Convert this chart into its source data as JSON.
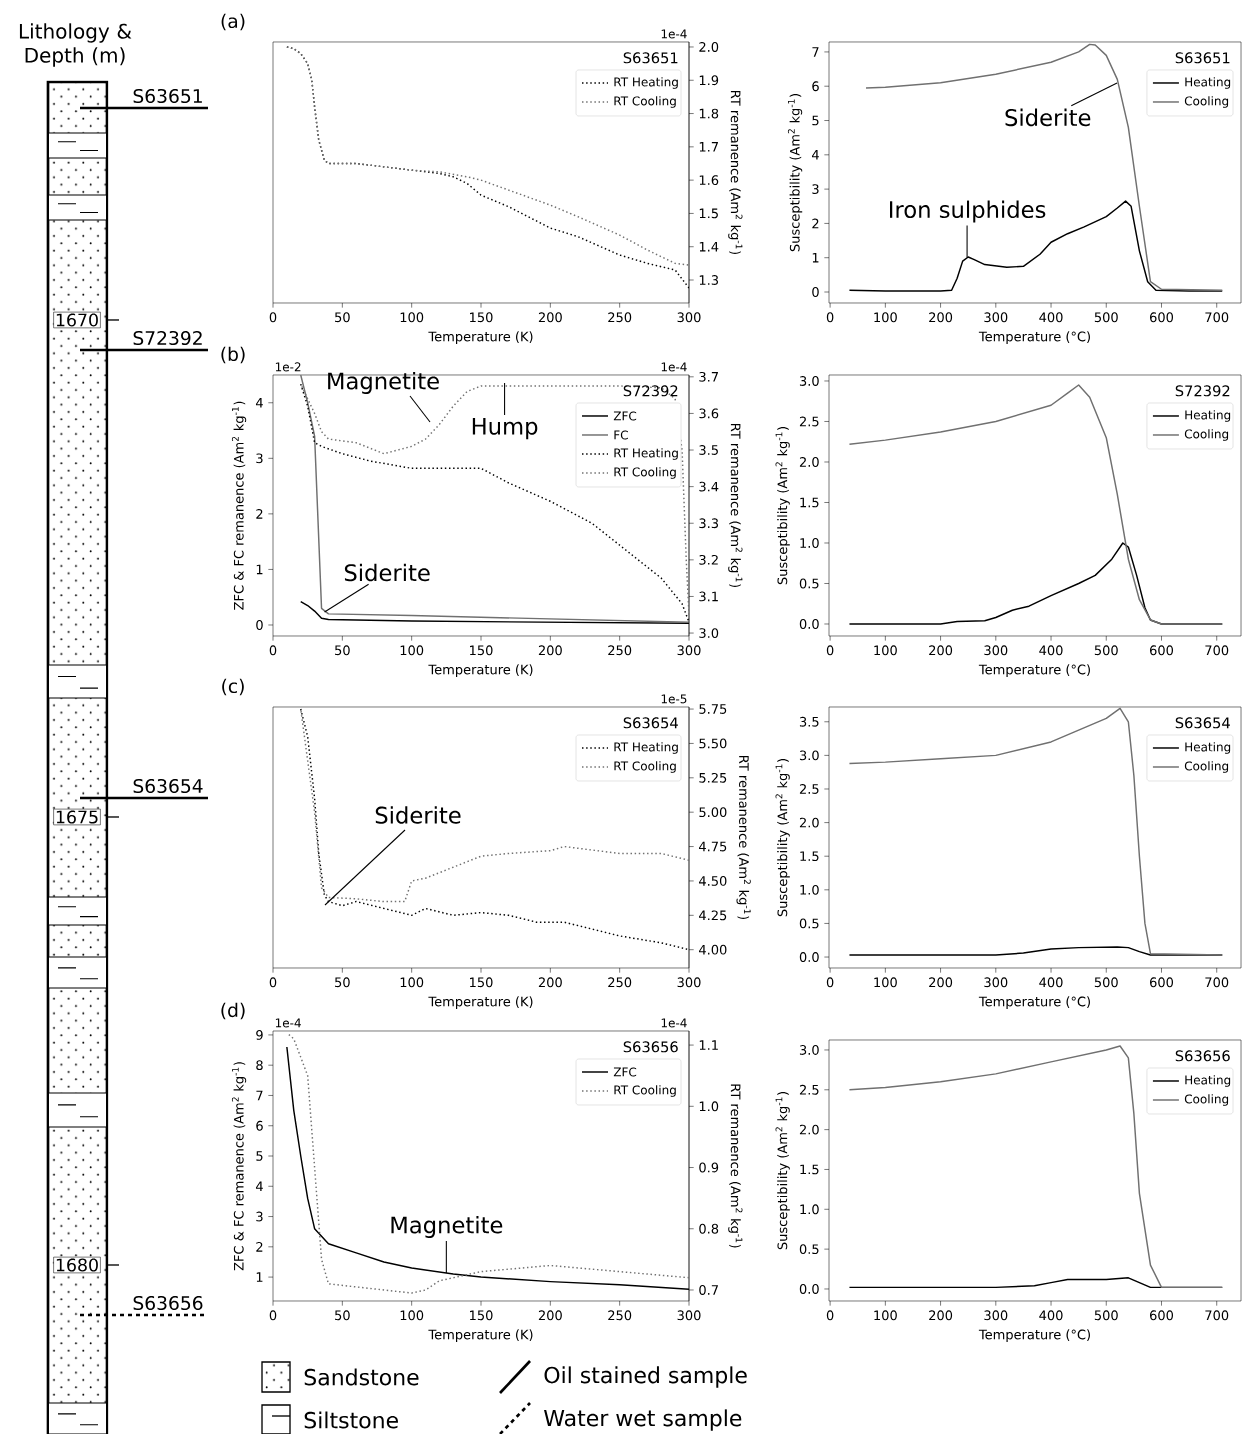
{
  "chart_data": [
    {
      "type": "other",
      "title": "Lithology & Depth (m)",
      "annotations": [
        "S63651",
        "S72392",
        "S63654",
        "S63656",
        "1670",
        "1675",
        "1680",
        "Sandstone",
        "Siltstone",
        "Oil stained sample",
        "Water wet sample"
      ]
    },
    {
      "type": "line",
      "title": "S63651",
      "xlabel": "Temperature (K)",
      "y2label": "RT remanence (Am$^{2}$ kg$^{-1}$)",
      "xlim": [
        0,
        300
      ],
      "xticks": [
        0,
        50,
        100,
        150,
        200,
        250,
        300
      ],
      "y2lim": [
        1.231,
        2.015
      ],
      "y2ticks": [
        1.3,
        1.4,
        1.5,
        1.6,
        1.7,
        1.8,
        1.9,
        {
          "value": 2,
          "label": "2.0"
        }
      ],
      "legend": "top right",
      "annotations": [
        "(a)",
        "1e-4"
      ],
      "series": [
        {
          "name": "RT Heating",
          "color": "#000000",
          "line_style": "dotted",
          "axis": "y2",
          "x": [
            10,
            15,
            20,
            25,
            28,
            30,
            33,
            37,
            40,
            60,
            80,
            100,
            120,
            130,
            140,
            150,
            170,
            200,
            220,
            250,
            270,
            280,
            290,
            300
          ],
          "values": [
            2.0,
            1.995,
            1.98,
            1.95,
            1.9,
            1.82,
            1.72,
            1.66,
            1.65,
            1.65,
            1.64,
            1.63,
            1.62,
            1.61,
            1.59,
            1.555,
            1.52,
            1.456,
            1.43,
            1.375,
            1.35,
            1.34,
            1.33,
            1.276
          ]
        },
        {
          "name": "RT Cooling",
          "color": "#707070",
          "line_style": "dotted",
          "axis": "y2",
          "x": [
            10,
            15,
            20,
            25,
            28,
            30,
            33,
            37,
            40,
            60,
            80,
            100,
            120,
            140,
            150,
            170,
            200,
            220,
            250,
            270,
            290,
            300
          ],
          "values": [
            2.0,
            1.995,
            1.98,
            1.95,
            1.9,
            1.82,
            1.72,
            1.66,
            1.65,
            1.65,
            1.64,
            1.63,
            1.625,
            1.61,
            1.6,
            1.57,
            1.525,
            1.49,
            1.435,
            1.39,
            1.35,
            1.345
          ]
        }
      ]
    },
    {
      "type": "line",
      "title": "S63651",
      "xlabel": "Temperature (°C)",
      "ylabel": "Susceptibility (Am$^{2}$ kg$^{-1}$)",
      "xlim": [
        -2,
        744
      ],
      "xticks": [
        0,
        100,
        200,
        300,
        400,
        500,
        600,
        700
      ],
      "ylim": [
        -0.32,
        7.29
      ],
      "yticks": [
        0,
        1,
        2,
        3,
        4,
        5,
        6,
        7
      ],
      "legend": "top right",
      "annotations": [
        {
          "text": "Siderite",
          "x": 520,
          "y": 6.1
        },
        {
          "text": "Iron sulphides",
          "x": 248,
          "y": 1.0
        }
      ],
      "series": [
        {
          "name": "Heating",
          "color": "#000000",
          "x": [
            35,
            100,
            200,
            220,
            230,
            240,
            250,
            260,
            280,
            320,
            350,
            380,
            400,
            430,
            460,
            500,
            520,
            535,
            545,
            560,
            575,
            590,
            650,
            710
          ],
          "values": [
            0.05,
            0.03,
            0.03,
            0.05,
            0.4,
            0.9,
            1.02,
            0.95,
            0.8,
            0.72,
            0.75,
            1.1,
            1.45,
            1.7,
            1.9,
            2.2,
            2.45,
            2.65,
            2.5,
            1.2,
            0.3,
            0.05,
            0.03,
            0.03
          ]
        },
        {
          "name": "Cooling",
          "color": "#707070",
          "x": [
            710,
            600,
            580,
            560,
            540,
            520,
            500,
            480,
            470,
            450,
            400,
            300,
            200,
            100,
            65
          ],
          "values": [
            0.05,
            0.08,
            0.3,
            2.5,
            4.8,
            6.2,
            6.9,
            7.2,
            7.22,
            7.0,
            6.7,
            6.35,
            6.1,
            5.97,
            5.95
          ]
        }
      ]
    },
    {
      "type": "line",
      "title": "S72392",
      "xlabel": "Temperature (K)",
      "ylabel": "ZFC & FC remanence (Am$^{2}$ kg$^{-1}$)",
      "y2label": "RT remanence (Am$^{2}$ kg$^{-1}$)",
      "xlim": [
        0,
        300
      ],
      "xticks": [
        0,
        50,
        100,
        150,
        200,
        250,
        300
      ],
      "ylim": [
        -0.198,
        4.5
      ],
      "yticks": [
        0,
        1,
        2,
        3,
        4
      ],
      "y2lim": [
        2.992,
        3.705
      ],
      "y2ticks": [
        {
          "value": 3,
          "label": "3.0"
        },
        3.1,
        3.2,
        3.3,
        3.4,
        3.5,
        3.6,
        3.7
      ],
      "legend": "top right",
      "annotations": [
        "(b)",
        "1e-2",
        "1e-4",
        "Magnetite",
        {
          "text": "Hump",
          "x": 167,
          "y": 4.36
        },
        {
          "text": "Siderite",
          "x": 37,
          "y": 0.23
        }
      ],
      "series": [
        {
          "name": "ZFC",
          "color": "#000000",
          "x": [
            20,
            25,
            30,
            35,
            40,
            100,
            300
          ],
          "values": [
            0.42,
            0.35,
            0.25,
            0.12,
            0.1,
            0.07,
            0.03
          ]
        },
        {
          "name": "FC",
          "color": "#707070",
          "x": [
            20,
            25,
            30,
            35,
            40,
            100,
            300
          ],
          "values": [
            4.5,
            4.0,
            3.4,
            0.3,
            0.2,
            0.17,
            0.05
          ]
        },
        {
          "name": "RT Heating",
          "color": "#000000",
          "line_style": "dotted",
          "axis": "y2",
          "x": [
            20,
            25,
            30,
            35,
            50,
            70,
            100,
            130,
            150,
            170,
            200,
            230,
            260,
            280,
            295,
            300
          ],
          "values": [
            3.68,
            3.62,
            3.52,
            3.51,
            3.49,
            3.47,
            3.45,
            3.45,
            3.45,
            3.41,
            3.36,
            3.3,
            3.21,
            3.15,
            3.08,
            3.03
          ]
        },
        {
          "name": "RT Cooling",
          "color": "#707070",
          "line_style": "dotted",
          "axis": "y2",
          "x": [
            300,
            298,
            295,
            290,
            280,
            250,
            200,
            150,
            140,
            130,
            120,
            110,
            100,
            90,
            80,
            60,
            40,
            35,
            30,
            20
          ],
          "values": [
            3.05,
            3.2,
            3.5,
            3.64,
            3.67,
            3.675,
            3.675,
            3.675,
            3.66,
            3.62,
            3.57,
            3.53,
            3.51,
            3.5,
            3.49,
            3.52,
            3.53,
            3.55,
            3.6,
            3.68
          ]
        }
      ]
    },
    {
      "type": "line",
      "title": "S72392",
      "xlabel": "Temperature (°C)",
      "ylabel": "Susceptibility (Am$^{2}$ kg$^{-1}$)",
      "xlim": [
        -2,
        744
      ],
      "xticks": [
        0,
        100,
        200,
        300,
        400,
        500,
        600,
        700
      ],
      "ylim": [
        -0.148,
        3.074
      ],
      "yticks": [
        {
          "value": 0,
          "label": "0.0"
        },
        0.5,
        {
          "value": 1,
          "label": "1.0"
        },
        1.5,
        {
          "value": 2,
          "label": "2.0"
        },
        2.5,
        {
          "value": 3,
          "label": "3.0"
        }
      ],
      "legend": "top right",
      "series": [
        {
          "name": "Heating",
          "color": "#000000",
          "x": [
            35,
            200,
            230,
            280,
            300,
            330,
            360,
            400,
            450,
            480,
            510,
            530,
            540,
            555,
            570,
            580,
            600,
            710
          ],
          "values": [
            0.0,
            0.0,
            0.03,
            0.04,
            0.08,
            0.17,
            0.22,
            0.35,
            0.5,
            0.6,
            0.8,
            1.0,
            0.95,
            0.6,
            0.2,
            0.05,
            0.0,
            0.0
          ]
        },
        {
          "name": "Cooling",
          "color": "#707070",
          "x": [
            710,
            600,
            580,
            560,
            540,
            520,
            500,
            470,
            450,
            430,
            400,
            300,
            200,
            100,
            35
          ],
          "values": [
            0.0,
            0.0,
            0.05,
            0.3,
            0.8,
            1.6,
            2.3,
            2.8,
            2.95,
            2.85,
            2.7,
            2.5,
            2.37,
            2.27,
            2.22
          ]
        }
      ]
    },
    {
      "type": "line",
      "title": "S63654",
      "xlabel": "Temperature (K)",
      "y2label": "RT remanence (Am$^{2}$ kg$^{-1}$)",
      "xlim": [
        0,
        300
      ],
      "xticks": [
        0,
        50,
        100,
        150,
        200,
        250,
        300
      ],
      "y2lim": [
        3.867,
        5.765
      ],
      "y2ticks": [
        {
          "value": 4,
          "label": "4.00"
        },
        {
          "value": 4.25,
          "label": "4.25"
        },
        {
          "value": 4.5,
          "label": "4.50"
        },
        {
          "value": 4.75,
          "label": "4.75"
        },
        {
          "value": 5,
          "label": "5.00"
        },
        {
          "value": 5.25,
          "label": "5.25"
        },
        {
          "value": 5.5,
          "label": "5.50"
        },
        {
          "value": 5.75,
          "label": "5.75"
        }
      ],
      "legend": "top right",
      "annotations": [
        "(c)",
        "1e-5",
        "Siderite"
      ],
      "series": [
        {
          "name": "RT Heating",
          "color": "#000000",
          "line_style": "dotted",
          "axis": "y2",
          "x": [
            20,
            25,
            30,
            33,
            37,
            40,
            50,
            60,
            80,
            100,
            110,
            130,
            150,
            170,
            190,
            210,
            250,
            280,
            300
          ],
          "values": [
            5.75,
            5.55,
            5.1,
            4.7,
            4.4,
            4.35,
            4.32,
            4.35,
            4.3,
            4.25,
            4.3,
            4.25,
            4.27,
            4.25,
            4.2,
            4.2,
            4.1,
            4.05,
            4.0
          ]
        },
        {
          "name": "RT Cooling",
          "color": "#707070",
          "line_style": "dotted",
          "axis": "y2",
          "x": [
            300,
            280,
            250,
            210,
            200,
            170,
            150,
            130,
            110,
            100,
            95,
            80,
            60,
            40,
            35,
            30,
            20
          ],
          "values": [
            4.65,
            4.7,
            4.7,
            4.75,
            4.72,
            4.7,
            4.68,
            4.6,
            4.52,
            4.5,
            4.35,
            4.35,
            4.37,
            4.38,
            4.45,
            5.0,
            5.75
          ]
        }
      ]
    },
    {
      "type": "line",
      "title": "S63654",
      "xlabel": "Temperature (°C)",
      "ylabel": "Susceptibility (Am$^{2}$ kg$^{-1}$)",
      "xlim": [
        -2,
        744
      ],
      "xticks": [
        0,
        100,
        200,
        300,
        400,
        500,
        600,
        700
      ],
      "ylim": [
        -0.163,
        3.72
      ],
      "yticks": [
        {
          "value": 0,
          "label": "0.0"
        },
        0.5,
        {
          "value": 1,
          "label": "1.0"
        },
        1.5,
        {
          "value": 2,
          "label": "2.0"
        },
        2.5,
        {
          "value": 3,
          "label": "3.0"
        },
        3.5
      ],
      "legend": "top right",
      "series": [
        {
          "name": "Heating",
          "color": "#000000",
          "x": [
            35,
            300,
            350,
            400,
            450,
            520,
            540,
            560,
            580,
            710
          ],
          "values": [
            0.03,
            0.03,
            0.06,
            0.12,
            0.14,
            0.15,
            0.14,
            0.08,
            0.03,
            0.03
          ]
        },
        {
          "name": "Cooling",
          "color": "#707070",
          "x": [
            710,
            580,
            570,
            560,
            550,
            540,
            525,
            500,
            400,
            300,
            200,
            100,
            35
          ],
          "values": [
            0.03,
            0.05,
            0.5,
            1.5,
            2.7,
            3.5,
            3.7,
            3.55,
            3.2,
            3.0,
            2.95,
            2.9,
            2.88
          ]
        }
      ]
    },
    {
      "type": "line",
      "title": "S63656",
      "xlabel": "Temperature (K)",
      "ylabel": "ZFC & FC remanence (Am$^{2}$ kg$^{-1}$)",
      "y2label": "RT remanence (Am$^{2}$ kg$^{-1}$)",
      "xlim": [
        0,
        300
      ],
      "xticks": [
        0,
        50,
        100,
        150,
        200,
        250,
        300
      ],
      "ylim": [
        0.21,
        9.13
      ],
      "yticks": [
        1,
        2,
        3,
        4,
        5,
        6,
        7,
        8,
        9
      ],
      "y2lim": [
        0.682,
        1.123
      ],
      "y2ticks": [
        0.7,
        0.8,
        0.9,
        {
          "value": 1,
          "label": "1.0"
        },
        1.1
      ],
      "legend": "top right",
      "annotations": [
        "(d)",
        "1e-4",
        "1e-4",
        {
          "text": "Magnetite",
          "x": 125,
          "y": 1.13
        }
      ],
      "series": [
        {
          "name": "ZFC",
          "color": "#000000",
          "x": [
            10,
            15,
            20,
            25,
            30,
            40,
            60,
            80,
            100,
            130,
            150,
            200,
            250,
            300
          ],
          "values": [
            8.6,
            6.5,
            5.0,
            3.6,
            2.6,
            2.1,
            1.8,
            1.5,
            1.3,
            1.1,
            1.0,
            0.85,
            0.75,
            0.6
          ]
        },
        {
          "name": "RT Cooling",
          "color": "#707070",
          "line_style": "dotted",
          "axis": "y2",
          "x": [
            300,
            250,
            200,
            150,
            120,
            110,
            100,
            80,
            60,
            40,
            35,
            30,
            25,
            15,
            10
          ],
          "values": [
            0.72,
            0.73,
            0.74,
            0.73,
            0.715,
            0.7,
            0.695,
            0.7,
            0.705,
            0.71,
            0.75,
            0.9,
            1.05,
            1.11,
            1.12
          ]
        }
      ]
    },
    {
      "type": "line",
      "title": "S63656",
      "xlabel": "Temperature (°C)",
      "ylabel": "Susceptibility (Am$^{2}$ kg$^{-1}$)",
      "xlim": [
        -2,
        744
      ],
      "xticks": [
        0,
        100,
        200,
        300,
        400,
        500,
        600,
        700
      ],
      "ylim": [
        -0.151,
        3.125
      ],
      "yticks": [
        {
          "value": 0,
          "label": "0.0"
        },
        0.5,
        {
          "value": 1,
          "label": "1.0"
        },
        1.5,
        {
          "value": 2,
          "label": "2.0"
        },
        2.5,
        {
          "value": 3,
          "label": "3.0"
        }
      ],
      "legend": "top right",
      "series": [
        {
          "name": "Heating",
          "color": "#000000",
          "x": [
            35,
            300,
            370,
            400,
            430,
            500,
            540,
            560,
            580,
            710
          ],
          "values": [
            0.02,
            0.02,
            0.04,
            0.08,
            0.12,
            0.12,
            0.14,
            0.08,
            0.02,
            0.02
          ]
        },
        {
          "name": "Cooling",
          "color": "#707070",
          "x": [
            710,
            600,
            580,
            560,
            550,
            540,
            525,
            500,
            400,
            300,
            200,
            100,
            35
          ],
          "values": [
            0.02,
            0.02,
            0.3,
            1.2,
            2.2,
            2.9,
            3.05,
            3.0,
            2.85,
            2.7,
            2.6,
            2.53,
            2.5
          ]
        }
      ]
    }
  ]
}
